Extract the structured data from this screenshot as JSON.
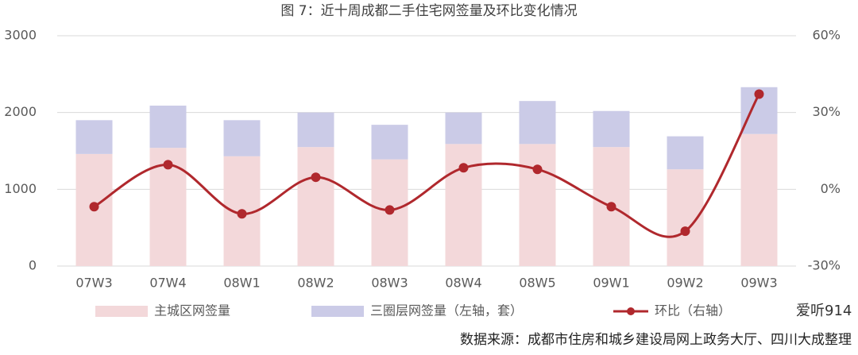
{
  "chart_data": {
    "type": "bar-line",
    "title": "图 7：近十周成都二手住宅网签量及环比变化情况",
    "categories": [
      "07W3",
      "07W4",
      "08W1",
      "08W2",
      "08W3",
      "08W4",
      "08W5",
      "09W1",
      "09W2",
      "09W3"
    ],
    "series": [
      {
        "name": "主城区网签量",
        "color": "#f3d8da",
        "stack": true,
        "values": [
          1460,
          1540,
          1430,
          1550,
          1390,
          1590,
          1590,
          1550,
          1260,
          1720
        ]
      },
      {
        "name": "三圈层网签量（左轴，套）",
        "color": "#cbcbe7",
        "stack": true,
        "values": [
          440,
          550,
          470,
          450,
          450,
          410,
          560,
          470,
          430,
          610
        ]
      },
      {
        "name": "环比（右轴）",
        "color": "#b0282d",
        "axis": "y2",
        "line": true,
        "values": [
          -6.8,
          9.6,
          -9.6,
          4.7,
          -8.1,
          8.4,
          7.8,
          -6.8,
          -16.4,
          37.2
        ]
      }
    ],
    "ylim": [
      0,
      3000
    ],
    "yticks": [
      0,
      1000,
      2000,
      3000
    ],
    "y2lim": [
      -30,
      60
    ],
    "y2ticks": [
      {
        "value": -30,
        "label": "-30%"
      },
      {
        "value": 0,
        "label": "0%"
      },
      {
        "value": 30,
        "label": "30%"
      },
      {
        "value": 60,
        "label": "60%"
      }
    ],
    "grid": true,
    "source": "数据来源：成都市住房和城乡建设局网上政务大厅、四川大成整理",
    "watermark": "爱听914"
  }
}
